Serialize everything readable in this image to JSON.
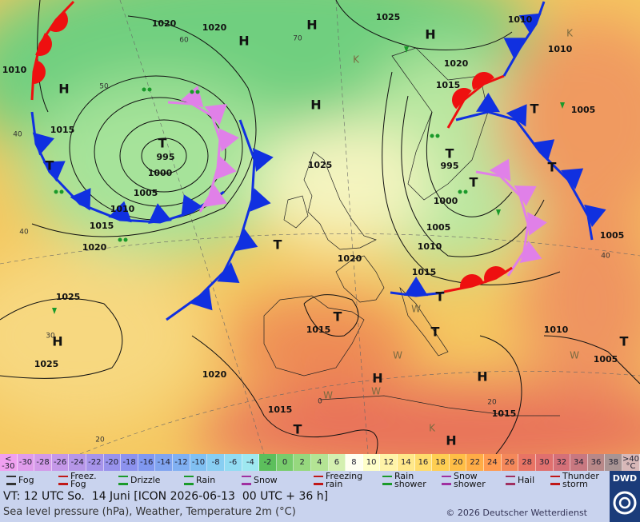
{
  "map": {
    "isobar_labels": [
      1020,
      1020,
      1025,
      1010,
      1010,
      1010,
      1015,
      995,
      1000,
      1005,
      1010,
      1015,
      1020,
      1025,
      1020,
      1015,
      995,
      1000,
      1005,
      1010,
      1015,
      1020,
      1005,
      1005,
      1025,
      1025,
      1015,
      1020,
      1015,
      1015,
      1010,
      1005
    ],
    "pressure_centers": [
      "H",
      "H",
      "H",
      "H",
      "H",
      "T",
      "T",
      "T",
      "T",
      "T",
      "T",
      "T",
      "T",
      "T",
      "T",
      "T",
      "H",
      "H",
      "H",
      "H",
      "T",
      "K",
      "K",
      "W",
      "W",
      "W",
      "W",
      "W",
      "K"
    ],
    "isotherm_labels": [
      60,
      50,
      40,
      40,
      30,
      20,
      0,
      40,
      20,
      70
    ]
  },
  "legend": {
    "temperature_low": "< -30",
    "temperatures": [
      -30,
      -28,
      -26,
      -24,
      -22,
      -20,
      -18,
      -16,
      -14,
      -12,
      -10,
      -8,
      -6,
      -4,
      -2,
      0,
      2,
      4,
      6,
      8,
      10,
      12,
      14,
      16,
      18,
      20,
      22,
      24,
      26,
      28,
      30,
      32,
      34,
      36,
      38
    ],
    "temperature_high": ">40 °C",
    "weather": [
      "Fog",
      "Freez. Fog",
      "Drizzle",
      "Rain",
      "Snow",
      "Freezing rain",
      "Rain shower",
      "Snow shower",
      "Hail",
      "Thunder storm"
    ]
  },
  "footer": {
    "valid_time": "VT: 12 UTC So.  14 Juni [ICON 2026-06-13  00 UTC + 36 h]",
    "subtitle": "Sea level pressure (hPa), Weather, Temperature 2m (°C)",
    "copyright": "© 2026 Deutscher Wetterdienst",
    "logo": "DWD"
  }
}
